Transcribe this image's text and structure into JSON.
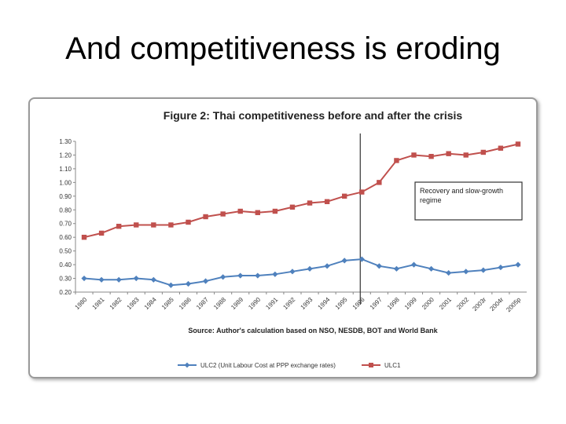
{
  "slide": {
    "title": "And competitiveness is eroding"
  },
  "chart_data": {
    "type": "line",
    "title": "Figure 2: Thai competitiveness before and after the crisis",
    "source": "Source: Author's calculation based on NSO, NESDB, BOT and World Bank",
    "categories": [
      "1980",
      "1981",
      "1982",
      "1983",
      "1984",
      "1985",
      "1986",
      "1987",
      "1988",
      "1989",
      "1990",
      "1991",
      "1992",
      "1993",
      "1994",
      "1995",
      "1996",
      "1997",
      "1998",
      "1999",
      "2000",
      "2001",
      "2002",
      "2003r",
      "2004r",
      "2005p"
    ],
    "yticks": [
      "0.20",
      "0.30",
      "0.40",
      "0.50",
      "0.60",
      "0.70",
      "0.80",
      "0.90",
      "1.00",
      "1.10",
      "1.20",
      "1.30"
    ],
    "ylim": [
      0.2,
      1.3
    ],
    "grid": false,
    "legend_position": "bottom",
    "series": [
      {
        "name": "ULC2 (Unit Labour Cost at PPP exchange rates)",
        "color": "#4f81bd",
        "marker": "diamond",
        "values": [
          0.3,
          0.29,
          0.29,
          0.3,
          0.29,
          0.25,
          0.26,
          0.28,
          0.31,
          0.32,
          0.32,
          0.33,
          0.35,
          0.37,
          0.39,
          0.43,
          0.44,
          0.39,
          0.37,
          0.4,
          0.37,
          0.34,
          0.35,
          0.36,
          0.38,
          0.4
        ]
      },
      {
        "name": "ULC1",
        "color": "#c0504d",
        "marker": "square",
        "values": [
          0.6,
          0.63,
          0.68,
          0.69,
          0.69,
          0.69,
          0.71,
          0.75,
          0.77,
          0.79,
          0.78,
          0.79,
          0.82,
          0.85,
          0.86,
          0.9,
          0.93,
          1.0,
          1.16,
          1.2,
          1.19,
          1.21,
          1.2,
          1.22,
          1.25,
          1.28
        ]
      }
    ],
    "annotations": [
      {
        "type": "vertical-line",
        "at_category": "1996",
        "label_lines": [
          "Recovery and slow-growth",
          "regime"
        ]
      }
    ]
  }
}
